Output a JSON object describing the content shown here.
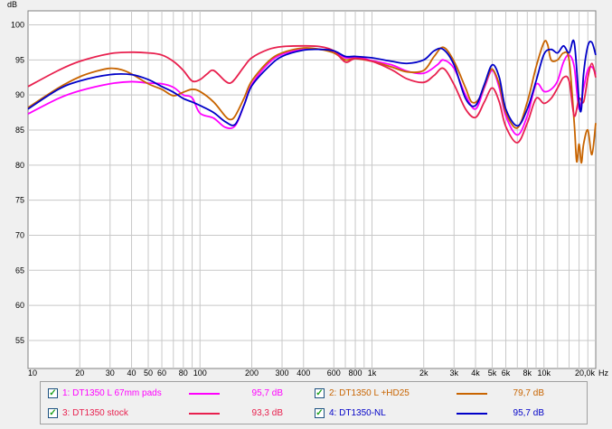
{
  "chart_data": {
    "type": "line",
    "title": "",
    "ylabel": "dB",
    "xlabel": "Hz",
    "xscale": "log",
    "xlim": [
      10,
      20000
    ],
    "ylim": [
      51,
      102
    ],
    "grid": true,
    "y_ticks": [
      {
        "value": 100,
        "label": "100"
      },
      {
        "value": 95,
        "label": "95"
      },
      {
        "value": 90,
        "label": "90"
      },
      {
        "value": 85,
        "label": "85"
      },
      {
        "value": 80,
        "label": "80"
      },
      {
        "value": 75,
        "label": "75"
      },
      {
        "value": 70,
        "label": "70"
      },
      {
        "value": 65,
        "label": "65"
      },
      {
        "value": 60,
        "label": "60"
      },
      {
        "value": 55,
        "label": "55"
      }
    ],
    "x_ticks": [
      {
        "value": 10,
        "label": "10"
      },
      {
        "value": 20,
        "label": "20"
      },
      {
        "value": 30,
        "label": "30"
      },
      {
        "value": 40,
        "label": "40"
      },
      {
        "value": 50,
        "label": "50"
      },
      {
        "value": 60,
        "label": "60"
      },
      {
        "value": 80,
        "label": "80"
      },
      {
        "value": 100,
        "label": "100"
      },
      {
        "value": 200,
        "label": "200"
      },
      {
        "value": 300,
        "label": "300"
      },
      {
        "value": 400,
        "label": "400"
      },
      {
        "value": 600,
        "label": "600"
      },
      {
        "value": 800,
        "label": "800"
      },
      {
        "value": 1000,
        "label": "1k"
      },
      {
        "value": 2000,
        "label": "2k"
      },
      {
        "value": 3000,
        "label": "3k"
      },
      {
        "value": 4000,
        "label": "4k"
      },
      {
        "value": 5000,
        "label": "5k"
      },
      {
        "value": 6000,
        "label": "6k"
      },
      {
        "value": 8000,
        "label": "8k"
      },
      {
        "value": 10000,
        "label": "10k"
      },
      {
        "value": 20000,
        "label": "20,0k"
      }
    ],
    "minor_grid": [
      70,
      90,
      700,
      900,
      7000,
      9000,
      12000,
      14000,
      16000,
      18000
    ],
    "legend_position": "bottom",
    "series": [
      {
        "name": "1: DT1350 L 67mm pads",
        "value_label": "95,7 dB",
        "color": "#ff00ff",
        "points": [
          [
            10,
            87.3
          ],
          [
            15,
            89.5
          ],
          [
            20,
            90.6
          ],
          [
            30,
            91.6
          ],
          [
            40,
            91.9
          ],
          [
            50,
            91.7
          ],
          [
            60,
            91.6
          ],
          [
            70,
            91.1
          ],
          [
            80,
            90.0
          ],
          [
            90,
            89.6
          ],
          [
            100,
            87.4
          ],
          [
            120,
            86.7
          ],
          [
            140,
            85.4
          ],
          [
            160,
            85.6
          ],
          [
            180,
            88.5
          ],
          [
            200,
            91.5
          ],
          [
            250,
            94.5
          ],
          [
            300,
            95.8
          ],
          [
            400,
            96.5
          ],
          [
            500,
            96.5
          ],
          [
            600,
            96.2
          ],
          [
            700,
            95.3
          ],
          [
            800,
            95.4
          ],
          [
            900,
            95.2
          ],
          [
            1000,
            94.9
          ],
          [
            1300,
            94.3
          ],
          [
            1600,
            93.4
          ],
          [
            2000,
            93.1
          ],
          [
            2400,
            94.3
          ],
          [
            2600,
            95.0
          ],
          [
            3000,
            93.8
          ],
          [
            3500,
            90.0
          ],
          [
            4000,
            88.0
          ],
          [
            4500,
            91.0
          ],
          [
            5000,
            93.5
          ],
          [
            5500,
            91.0
          ],
          [
            6000,
            87.0
          ],
          [
            7000,
            84.3
          ],
          [
            8000,
            87.0
          ],
          [
            9000,
            91.5
          ],
          [
            10000,
            90.5
          ],
          [
            11000,
            90.8
          ],
          [
            12000,
            92.0
          ],
          [
            13000,
            94.7
          ],
          [
            14000,
            95.7
          ],
          [
            15000,
            94.0
          ],
          [
            16000,
            88.0
          ],
          [
            17000,
            91.0
          ],
          [
            18000,
            93.6
          ],
          [
            19000,
            94.0
          ],
          [
            20000,
            93.0
          ]
        ]
      },
      {
        "name": "2: DT1350 L +HD25",
        "value_label": "79,7 dB",
        "color": "#c86400",
        "points": [
          [
            10,
            88.2
          ],
          [
            15,
            91.0
          ],
          [
            20,
            92.6
          ],
          [
            25,
            93.4
          ],
          [
            30,
            93.8
          ],
          [
            35,
            93.6
          ],
          [
            40,
            93.0
          ],
          [
            50,
            91.6
          ],
          [
            60,
            90.8
          ],
          [
            70,
            89.9
          ],
          [
            80,
            90.4
          ],
          [
            90,
            90.8
          ],
          [
            100,
            90.5
          ],
          [
            120,
            89.0
          ],
          [
            140,
            87.0
          ],
          [
            150,
            86.5
          ],
          [
            160,
            87.0
          ],
          [
            180,
            89.5
          ],
          [
            200,
            92.0
          ],
          [
            250,
            94.8
          ],
          [
            300,
            96.0
          ],
          [
            400,
            96.7
          ],
          [
            500,
            96.5
          ],
          [
            600,
            96.0
          ],
          [
            700,
            95.0
          ],
          [
            800,
            95.2
          ],
          [
            1000,
            94.8
          ],
          [
            1300,
            94.0
          ],
          [
            1600,
            93.3
          ],
          [
            2000,
            93.5
          ],
          [
            2300,
            95.5
          ],
          [
            2600,
            96.8
          ],
          [
            3000,
            94.8
          ],
          [
            3500,
            91.0
          ],
          [
            3800,
            89.0
          ],
          [
            4200,
            89.5
          ],
          [
            4700,
            92.5
          ],
          [
            5000,
            93.7
          ],
          [
            5500,
            91.5
          ],
          [
            6000,
            87.5
          ],
          [
            7000,
            85.3
          ],
          [
            8000,
            89.0
          ],
          [
            9000,
            94.0
          ],
          [
            10000,
            97.5
          ],
          [
            10500,
            97.2
          ],
          [
            11000,
            95.0
          ],
          [
            12000,
            95.0
          ],
          [
            13000,
            96.0
          ],
          [
            14000,
            95.0
          ],
          [
            15000,
            86.0
          ],
          [
            15500,
            80.5
          ],
          [
            16000,
            83.0
          ],
          [
            16500,
            80.3
          ],
          [
            17000,
            83.0
          ],
          [
            18000,
            85.0
          ],
          [
            19000,
            81.5
          ],
          [
            20000,
            86.0
          ]
        ]
      },
      {
        "name": "3: DT1350 stock",
        "value_label": "93,3 dB",
        "color": "#e8204e",
        "points": [
          [
            10,
            91.2
          ],
          [
            15,
            93.5
          ],
          [
            20,
            94.8
          ],
          [
            30,
            95.9
          ],
          [
            40,
            96.1
          ],
          [
            50,
            96.0
          ],
          [
            60,
            95.7
          ],
          [
            70,
            94.8
          ],
          [
            80,
            93.5
          ],
          [
            90,
            92.0
          ],
          [
            100,
            92.2
          ],
          [
            110,
            93.0
          ],
          [
            120,
            93.5
          ],
          [
            140,
            92.0
          ],
          [
            150,
            91.7
          ],
          [
            160,
            92.3
          ],
          [
            180,
            94.0
          ],
          [
            200,
            95.3
          ],
          [
            250,
            96.5
          ],
          [
            300,
            96.9
          ],
          [
            400,
            97.0
          ],
          [
            500,
            96.9
          ],
          [
            600,
            96.3
          ],
          [
            700,
            94.7
          ],
          [
            800,
            95.2
          ],
          [
            1000,
            94.8
          ],
          [
            1300,
            93.6
          ],
          [
            1600,
            92.3
          ],
          [
            2000,
            91.8
          ],
          [
            2300,
            92.8
          ],
          [
            2600,
            93.8
          ],
          [
            3000,
            91.5
          ],
          [
            3500,
            88.0
          ],
          [
            4000,
            86.8
          ],
          [
            4500,
            89.0
          ],
          [
            5000,
            91.0
          ],
          [
            5500,
            89.0
          ],
          [
            6000,
            85.5
          ],
          [
            7000,
            83.2
          ],
          [
            8000,
            86.0
          ],
          [
            9000,
            89.5
          ],
          [
            10000,
            88.8
          ],
          [
            11000,
            89.5
          ],
          [
            12000,
            91.0
          ],
          [
            13000,
            92.5
          ],
          [
            14000,
            92.0
          ],
          [
            15000,
            87.0
          ],
          [
            16000,
            89.5
          ],
          [
            17000,
            89.0
          ],
          [
            18000,
            92.5
          ],
          [
            19000,
            94.5
          ],
          [
            20000,
            92.5
          ]
        ]
      },
      {
        "name": "4: DT1350-NL",
        "value_label": "95,7 dB",
        "color": "#0000c8",
        "points": [
          [
            10,
            88.0
          ],
          [
            15,
            90.8
          ],
          [
            20,
            92.0
          ],
          [
            30,
            92.9
          ],
          [
            40,
            92.9
          ],
          [
            50,
            92.2
          ],
          [
            60,
            91.2
          ],
          [
            70,
            90.4
          ],
          [
            80,
            89.5
          ],
          [
            90,
            89.0
          ],
          [
            100,
            88.5
          ],
          [
            120,
            87.5
          ],
          [
            140,
            86.2
          ],
          [
            160,
            85.8
          ],
          [
            180,
            88.5
          ],
          [
            200,
            91.3
          ],
          [
            250,
            94.0
          ],
          [
            300,
            95.5
          ],
          [
            400,
            96.4
          ],
          [
            500,
            96.5
          ],
          [
            600,
            96.3
          ],
          [
            700,
            95.5
          ],
          [
            800,
            95.5
          ],
          [
            1000,
            95.3
          ],
          [
            1300,
            94.8
          ],
          [
            1600,
            94.5
          ],
          [
            2000,
            95.0
          ],
          [
            2300,
            96.3
          ],
          [
            2600,
            96.5
          ],
          [
            3000,
            94.3
          ],
          [
            3500,
            89.5
          ],
          [
            4000,
            88.5
          ],
          [
            4500,
            91.5
          ],
          [
            5000,
            94.3
          ],
          [
            5500,
            92.5
          ],
          [
            6000,
            88.0
          ],
          [
            7000,
            85.6
          ],
          [
            8000,
            88.0
          ],
          [
            9000,
            92.0
          ],
          [
            10000,
            95.8
          ],
          [
            11000,
            96.5
          ],
          [
            12000,
            96.0
          ],
          [
            13000,
            97.0
          ],
          [
            14000,
            96.0
          ],
          [
            15000,
            97.5
          ],
          [
            16000,
            89.0
          ],
          [
            16500,
            88.0
          ],
          [
            17000,
            93.0
          ],
          [
            18000,
            97.0
          ],
          [
            19000,
            97.5
          ],
          [
            20000,
            95.7
          ]
        ]
      }
    ]
  }
}
